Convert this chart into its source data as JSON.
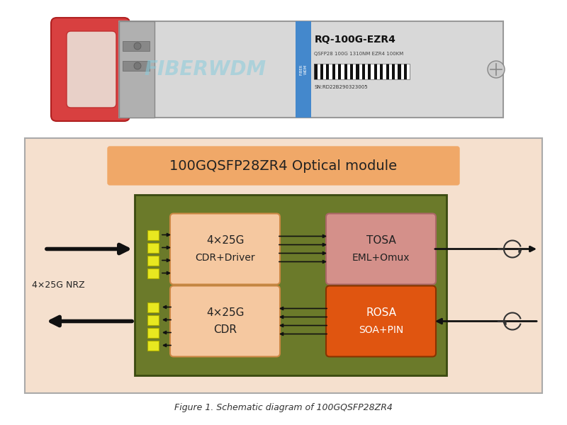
{
  "bg_color": "#ffffff",
  "diagram_bg": "#f5e0ce",
  "diagram_border": "#aaaaaa",
  "green_box_color": "#6b7a2a",
  "title_box_color": "#f0a868",
  "title_text": "100GQSFP28ZR4 Optical module",
  "title_fontsize": 14,
  "cdr_driver_box_color": "#f5c8a0",
  "cdr_driver_text1": "4×25G",
  "cdr_driver_text2": "CDR+Driver",
  "cdr_box_color": "#f5c8a0",
  "cdr_text1": "4×25G",
  "cdr_text2": "CDR",
  "tosa_box_color": "#d4908a",
  "tosa_text1": "TOSA",
  "tosa_text2": "EML+Omux",
  "rosa_box_color": "#e05510",
  "rosa_text1": "ROSA",
  "rosa_text2": "SOA+PIN",
  "label_nrz": "4×25G NRZ",
  "figure_caption": "Figure 1. Schematic diagram of 100GQSFP28ZR4",
  "yellow_color": "#e8e820",
  "arrow_color": "#111111",
  "module_bg": "#e0e0e0",
  "module_body_bg": "#d8d8d8",
  "pull_tab_color": "#d84040",
  "pull_tab_inner": "#e8d0c8",
  "fiberwdm_color": "#88ccdd",
  "label_stripe_color": "#4488cc"
}
